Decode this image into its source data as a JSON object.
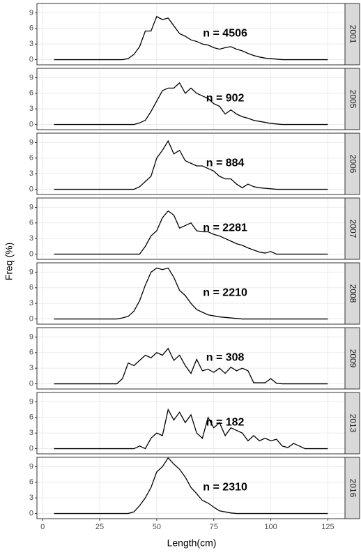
{
  "chart_data": {
    "type": "line",
    "xlabel": "Length(cm)",
    "ylabel": "Freq (%)",
    "x": [
      5,
      7.5,
      10,
      12.5,
      15,
      17.5,
      20,
      22.5,
      25,
      27.5,
      30,
      32.5,
      35,
      37.5,
      40,
      42.5,
      45,
      47.5,
      50,
      52.5,
      55,
      57.5,
      60,
      62.5,
      65,
      67.5,
      70,
      72.5,
      75,
      77.5,
      80,
      82.5,
      85,
      87.5,
      90,
      92.5,
      95,
      97.5,
      100,
      102.5,
      105,
      107.5,
      110,
      112.5,
      115,
      117.5,
      120,
      122.5,
      125
    ],
    "xlim": [
      -2.5,
      132.5
    ],
    "xticks": [
      0,
      25,
      50,
      75,
      100,
      125
    ],
    "ylim": [
      -1,
      10.8
    ],
    "yticks": [
      0,
      3,
      6,
      9
    ],
    "grid": true,
    "series": [
      {
        "name": "2001",
        "label": "n = 4506",
        "color": "#000000",
        "values": [
          0,
          0,
          0,
          0,
          0,
          0,
          0,
          0,
          0,
          0,
          0,
          0,
          0,
          0.2,
          1,
          2.5,
          5.5,
          5.5,
          8.3,
          7.7,
          8,
          6.5,
          5,
          4.5,
          3.8,
          3.5,
          3,
          2.8,
          2.3,
          2,
          2.3,
          2.5,
          2,
          1.7,
          1.2,
          0.8,
          0.5,
          0.3,
          0.2,
          0.1,
          0,
          0,
          0,
          0,
          0,
          0,
          0,
          0,
          0
        ]
      },
      {
        "name": "2005",
        "label": "n = 902",
        "color": "#000000",
        "values": [
          0,
          0,
          0,
          0,
          0,
          0,
          0,
          0,
          0,
          0,
          0,
          0,
          0,
          0,
          0,
          0.3,
          0.8,
          2.5,
          4.5,
          6.5,
          7,
          7,
          8,
          6,
          7,
          6,
          5.5,
          5,
          4,
          3.5,
          2,
          2.8,
          2,
          1.5,
          1.2,
          0.8,
          0.6,
          0.4,
          0.2,
          0.1,
          0,
          0,
          0,
          0,
          0,
          0,
          0,
          0,
          0
        ]
      },
      {
        "name": "2006",
        "label": "n = 884",
        "color": "#000000",
        "values": [
          0,
          0,
          0,
          0,
          0,
          0,
          0,
          0,
          0,
          0,
          0,
          0,
          0,
          0,
          0,
          0.5,
          1.5,
          2.5,
          6,
          7.5,
          9.3,
          6.8,
          7.5,
          5.5,
          5,
          4.5,
          4.5,
          4,
          3.5,
          2.5,
          2,
          2,
          1,
          0.3,
          1,
          0.5,
          0.3,
          0.2,
          0.1,
          0,
          0,
          0,
          0,
          0,
          0,
          0,
          0,
          0,
          0
        ]
      },
      {
        "name": "2007",
        "label": "n = 2281",
        "color": "#000000",
        "values": [
          0,
          0,
          0,
          0,
          0,
          0,
          0,
          0,
          0,
          0,
          0,
          0,
          0,
          0,
          0,
          0,
          1.5,
          3.5,
          4.5,
          7,
          8.3,
          7.5,
          5,
          5.5,
          6,
          4.5,
          4.3,
          4.3,
          3.8,
          3.5,
          3,
          2.5,
          2,
          1.7,
          1.2,
          0.8,
          0.4,
          0.2,
          0.5,
          0,
          0,
          0,
          0,
          0,
          0,
          0,
          0,
          0,
          0
        ]
      },
      {
        "name": "2008",
        "label": "n = 2210",
        "color": "#000000",
        "values": [
          0,
          0,
          0,
          0,
          0,
          0,
          0,
          0,
          0,
          0,
          0,
          0,
          0.2,
          0.5,
          1.5,
          3.5,
          6.5,
          9,
          9.8,
          9.5,
          9.8,
          8,
          5.5,
          4.5,
          3,
          1.8,
          1.3,
          0.8,
          0.6,
          0.4,
          0.3,
          0.2,
          0.1,
          0,
          0,
          0,
          0,
          0,
          0,
          0,
          0,
          0,
          0,
          0,
          0,
          0,
          0,
          0,
          0
        ]
      },
      {
        "name": "2009",
        "label": "n = 308",
        "color": "#000000",
        "values": [
          0,
          0,
          0,
          0,
          0,
          0,
          0,
          0,
          0,
          0,
          0,
          0,
          1,
          4,
          3.5,
          4.5,
          5.5,
          5,
          6,
          5.5,
          6.8,
          4.5,
          5.5,
          3.5,
          2,
          4.7,
          2.5,
          2.8,
          2.2,
          3,
          2,
          3.2,
          2.5,
          3,
          2.5,
          0.2,
          0.2,
          0.2,
          1,
          0.1,
          0,
          0,
          0,
          0,
          0,
          0,
          0,
          0,
          0
        ]
      },
      {
        "name": "2013",
        "label": "n = 182",
        "color": "#000000",
        "values": [
          0,
          0,
          0,
          0,
          0,
          0,
          0,
          0,
          0,
          0,
          0,
          0,
          0,
          0,
          0,
          0.5,
          0,
          2,
          3,
          2.5,
          7.5,
          5.5,
          7,
          5,
          6.5,
          3,
          2,
          6,
          4,
          5,
          2.5,
          4,
          3.5,
          3,
          1.5,
          2.5,
          1.5,
          2,
          1.5,
          1.8,
          0.5,
          0.2,
          1,
          0.5,
          0,
          0,
          0,
          0,
          0
        ]
      },
      {
        "name": "2016",
        "label": "n = 2310",
        "color": "#000000",
        "values": [
          0,
          0,
          0,
          0,
          0,
          0,
          0,
          0,
          0,
          0,
          0,
          0,
          0,
          0,
          0.3,
          1.5,
          3,
          5,
          8,
          9,
          10.7,
          9.5,
          8.5,
          7,
          5,
          3.8,
          2.5,
          2,
          1.2,
          0.5,
          0.3,
          0.1,
          0,
          0,
          0,
          0,
          0,
          0,
          0,
          0,
          0,
          0,
          0,
          0,
          0,
          0,
          0,
          0,
          0
        ]
      }
    ]
  }
}
